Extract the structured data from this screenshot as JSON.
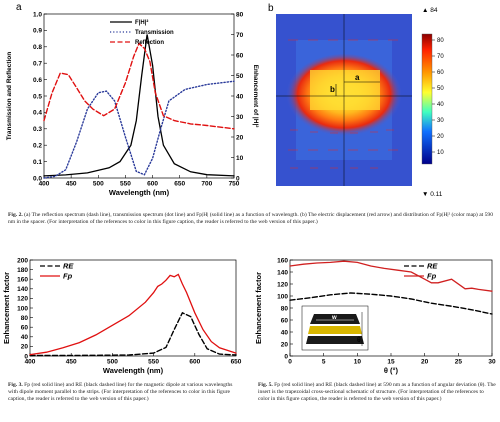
{
  "fig2": {
    "panel_a_label": "a",
    "panel_b_label": "b",
    "caption_label": "Fig. 2.",
    "caption": "(a) The reflection spectrum (dash line), transmission spectrum (dot line) and Fp|H| (solid line) as a function of wavelength. (b) The electric displacement (red arrow) and distribution of Fp|H|² (color map) at 590 nm in the spacer. (For interpretation of the references to color in this figure caption, the reader is referred to the web version of this paper.)",
    "colorbar_max": "▲ 84",
    "colorbar_min": "▼ 0.11",
    "colorbar_ticks": [
      "80",
      "70",
      "60",
      "50",
      "40",
      "30",
      "20",
      "10"
    ],
    "map_labels": {
      "a": "a",
      "b": "b"
    }
  },
  "fig3": {
    "caption_label": "Fig. 3.",
    "caption": "Fp (red solid line) and RE (black dashed line) for the magnetic dipole at various wavelengths with dipole moment parallel to the strips. (For interpretation of the references to color in this figure caption, the reader is referred to the web version of this paper.)"
  },
  "fig5": {
    "caption_label": "Fig. 5.",
    "caption": "Fp (red solid line) and RE (black dashed line) at 590 nm as a function of angular deviation (θ). The insert is the trapezoidal cross-sectional schematic of structure. (For interpretation of the references to color in this figure caption, the reader is referred to the web version of this paper.)",
    "inset_w": "w",
    "inset_theta": "θ"
  },
  "chart_data": [
    {
      "type": "line",
      "id": "fig2a",
      "xlabel": "Wavelength (nm)",
      "ylabel": "Transmission and Reflection",
      "y2label": "Enhancement of |H|²",
      "xlim": [
        400,
        750
      ],
      "ylim": [
        0.0,
        1.0
      ],
      "y2lim": [
        0,
        80
      ],
      "xticks": [
        400,
        450,
        500,
        550,
        600,
        650,
        700,
        750
      ],
      "yticks": [
        0.0,
        0.1,
        0.2,
        0.3,
        0.4,
        0.5,
        0.6,
        0.7,
        0.8,
        0.9,
        1.0
      ],
      "y2ticks": [
        0,
        10,
        20,
        30,
        40,
        50,
        60,
        70,
        80
      ],
      "legend": [
        "F|H|²",
        "Transmission",
        "Reflection"
      ],
      "series": [
        {
          "name": "F|H|²",
          "axis": "right",
          "style": "solid",
          "color": "#000000",
          "x": [
            400,
            440,
            480,
            520,
            540,
            560,
            570,
            580,
            590,
            600,
            610,
            620,
            640,
            670,
            700,
            750
          ],
          "y": [
            1,
            1.5,
            2.5,
            5,
            8,
            16,
            28,
            50,
            70,
            55,
            30,
            16,
            7,
            3,
            1.6,
            1
          ]
        },
        {
          "name": "Transmission",
          "axis": "left",
          "style": "dot",
          "color": "#2a3a9a",
          "x": [
            400,
            420,
            440,
            460,
            480,
            500,
            515,
            530,
            550,
            570,
            585,
            600,
            615,
            630,
            660,
            700,
            750
          ],
          "y": [
            0.0,
            0.01,
            0.05,
            0.22,
            0.42,
            0.52,
            0.53,
            0.47,
            0.25,
            0.04,
            0.02,
            0.12,
            0.3,
            0.47,
            0.54,
            0.57,
            0.59
          ]
        },
        {
          "name": "Reflection",
          "axis": "left",
          "style": "dash",
          "color": "#e01010",
          "x": [
            400,
            415,
            430,
            445,
            460,
            475,
            490,
            510,
            530,
            550,
            565,
            575,
            585,
            595,
            605,
            620,
            640,
            670,
            700,
            750
          ],
          "y": [
            0.35,
            0.52,
            0.64,
            0.63,
            0.55,
            0.47,
            0.42,
            0.38,
            0.42,
            0.58,
            0.74,
            0.82,
            0.79,
            0.71,
            0.52,
            0.38,
            0.35,
            0.33,
            0.32,
            0.3
          ]
        }
      ]
    },
    {
      "type": "line",
      "id": "fig3",
      "xlabel": "Wavelength (nm)",
      "ylabel": "Enhancement factor",
      "xlim": [
        400,
        650
      ],
      "ylim": [
        0,
        200
      ],
      "xticks": [
        400,
        450,
        500,
        550,
        600,
        650
      ],
      "yticks": [
        0,
        20,
        40,
        60,
        80,
        100,
        120,
        140,
        160,
        180,
        200
      ],
      "legend": [
        "RE",
        "Fp"
      ],
      "series": [
        {
          "name": "RE",
          "style": "dash",
          "color": "#000000",
          "x": [
            400,
            440,
            480,
            520,
            550,
            565,
            575,
            585,
            595,
            605,
            615,
            630,
            650
          ],
          "y": [
            1,
            1,
            1.5,
            2,
            6,
            18,
            55,
            90,
            82,
            45,
            15,
            4,
            2
          ]
        },
        {
          "name": "Fp",
          "style": "solid",
          "color": "#e01010",
          "x": [
            400,
            420,
            440,
            460,
            480,
            500,
            520,
            540,
            550,
            555,
            560,
            565,
            570,
            575,
            580,
            585,
            590,
            600,
            610,
            620,
            630,
            650
          ],
          "y": [
            3,
            8,
            17,
            28,
            44,
            64,
            84,
            112,
            132,
            145,
            150,
            158,
            168,
            165,
            170,
            150,
            132,
            90,
            55,
            30,
            17,
            6
          ]
        }
      ]
    },
    {
      "type": "line",
      "id": "fig5",
      "xlabel": "θ (°)",
      "ylabel": "Enhancement factor",
      "xlim": [
        0,
        30
      ],
      "ylim": [
        0,
        160
      ],
      "xticks": [
        0,
        5,
        10,
        15,
        20,
        25,
        30
      ],
      "yticks": [
        0,
        20,
        40,
        60,
        80,
        100,
        120,
        140,
        160
      ],
      "legend": [
        "RE",
        "Fp"
      ],
      "series": [
        {
          "name": "RE",
          "style": "dash",
          "color": "#000000",
          "x": [
            0,
            3,
            6,
            9,
            12,
            15,
            18,
            21,
            24,
            27,
            30
          ],
          "y": [
            93,
            97,
            102,
            105,
            103,
            100,
            95,
            88,
            83,
            77,
            70
          ]
        },
        {
          "name": "Fp",
          "style": "solid",
          "color": "#d02020",
          "x": [
            0,
            2,
            4,
            6,
            8,
            10,
            12,
            14,
            16,
            18,
            20,
            21,
            22,
            24,
            26,
            27,
            28,
            30
          ],
          "y": [
            150,
            153,
            155,
            156,
            158,
            156,
            150,
            146,
            143,
            140,
            128,
            122,
            122,
            128,
            112,
            113,
            111,
            108
          ]
        }
      ]
    }
  ]
}
